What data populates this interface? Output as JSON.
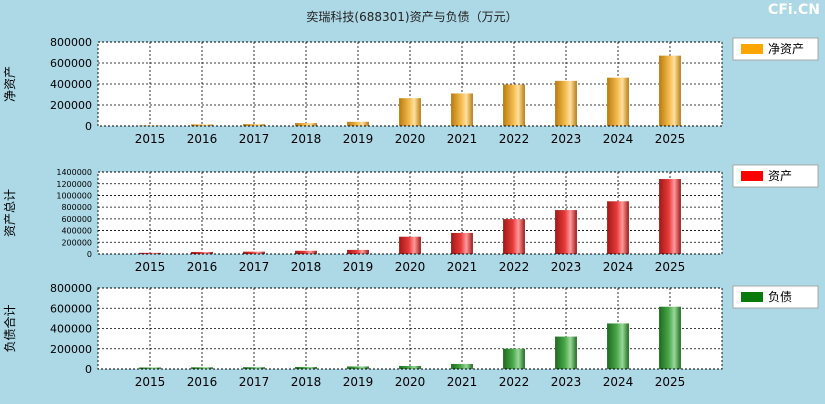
{
  "title": "奕瑞科技(688301)资产与负债（万元）",
  "watermark": "CFi.CN",
  "chart_data": [
    {
      "type": "bar",
      "id": "equity",
      "ylabel": "净资产",
      "legend": "净资产",
      "legend_color": "#ffa500",
      "bar_colors": [
        "#b87a10",
        "#f2b94a",
        "#ffe0a0"
      ],
      "categories": [
        "2015",
        "2016",
        "2017",
        "2018",
        "2019",
        "2020",
        "2021",
        "2022",
        "2023",
        "2024",
        "2025"
      ],
      "values": [
        5000,
        15000,
        18000,
        28000,
        40000,
        265000,
        310000,
        395000,
        430000,
        460000,
        670000
      ],
      "yticks": [
        "800000",
        "600000",
        "400000",
        "200000",
        "0"
      ],
      "ylim": [
        0,
        800000
      ]
    },
    {
      "type": "bar",
      "id": "assets",
      "ylabel": "资产总计",
      "legend": "资产",
      "legend_color": "#ff0000",
      "bar_colors": [
        "#a01818",
        "#e83a3a",
        "#ff9a9a"
      ],
      "categories": [
        "2015",
        "2016",
        "2017",
        "2018",
        "2019",
        "2020",
        "2021",
        "2022",
        "2023",
        "2024",
        "2025"
      ],
      "values": [
        20000,
        35000,
        40000,
        55000,
        70000,
        295000,
        360000,
        595000,
        750000,
        900000,
        1280000
      ],
      "yticks": [
        "1400000",
        "1200000",
        "1000000",
        "800000",
        "600000",
        "400000",
        "200000",
        "0"
      ],
      "ylim": [
        0,
        1400000
      ]
    },
    {
      "type": "bar",
      "id": "liabilities",
      "ylabel": "负债合计",
      "legend": "负债",
      "legend_color": "#0a7a0a",
      "bar_colors": [
        "#1e6a1e",
        "#4aa84a",
        "#9ad89a"
      ],
      "categories": [
        "2015",
        "2016",
        "2017",
        "2018",
        "2019",
        "2020",
        "2021",
        "2022",
        "2023",
        "2024",
        "2025"
      ],
      "values": [
        15000,
        17000,
        18000,
        20000,
        25000,
        30000,
        50000,
        200000,
        320000,
        450000,
        615000
      ],
      "yticks": [
        "800000",
        "600000",
        "400000",
        "200000",
        "0"
      ],
      "ylim": [
        0,
        800000
      ]
    }
  ]
}
